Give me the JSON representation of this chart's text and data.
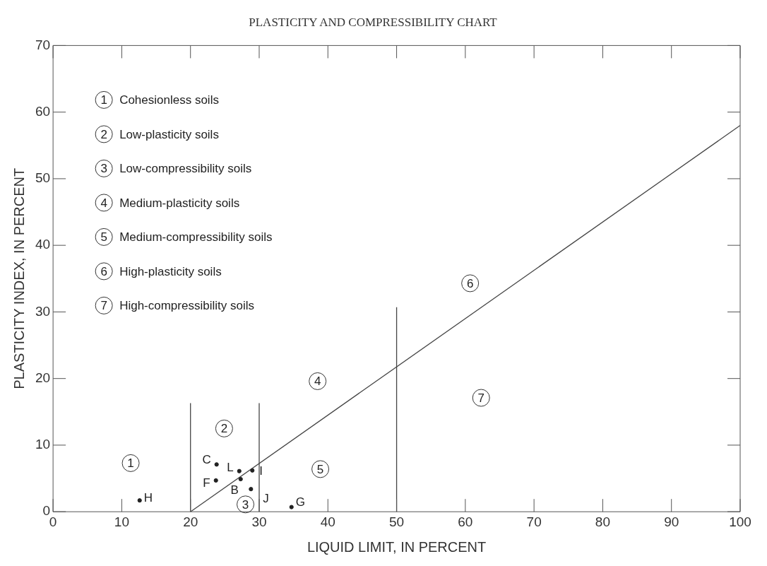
{
  "chart_data": {
    "type": "scatter",
    "title": "PLASTICITY AND COMPRESSIBILITY CHART",
    "xlabel": "LIQUID LIMIT, IN PERCENT",
    "ylabel": "PLASTICITY INDEX, IN PERCENT",
    "xlim": [
      0,
      100
    ],
    "ylim": [
      0,
      70
    ],
    "xticks": [
      0,
      10,
      20,
      30,
      40,
      50,
      60,
      70,
      80,
      90,
      100
    ],
    "yticks": [
      0,
      10,
      20,
      30,
      40,
      50,
      60,
      70
    ],
    "grid": false,
    "legend": false,
    "series": [
      {
        "marker": "circle",
        "color": "#222222",
        "x": [
          12.6,
          23.8,
          23.7,
          27.1,
          27.3,
          29.0,
          28.8,
          34.7
        ],
        "values": [
          1.7,
          7.1,
          4.7,
          6.1,
          4.9,
          6.2,
          3.4,
          0.7
        ],
        "value_labels": [
          "H",
          "C",
          "F",
          "L",
          "B",
          "I",
          "J",
          "G"
        ]
      },
      {
        "type": "line",
        "color": "#444444",
        "x": [
          20,
          100
        ],
        "values": [
          0,
          58
        ]
      },
      {
        "type": "line",
        "color": "#444444",
        "x": [
          20,
          20
        ],
        "values": [
          0,
          16.3
        ]
      },
      {
        "type": "line",
        "color": "#444444",
        "x": [
          30,
          30
        ],
        "values": [
          0,
          16.3
        ]
      },
      {
        "type": "line",
        "color": "#444444",
        "x": [
          50,
          50
        ],
        "values": [
          0,
          30.7
        ]
      }
    ],
    "annotations": [
      "1 Cohesionless soils",
      "2 Low-plasticity soils",
      "3 Low-compressibility soils",
      "4 Medium-plasticity soils",
      "5 Medium-compressibility soils",
      "6 High-plasticity soils",
      "7 High-compressibility soils",
      {
        "text": "1",
        "x": 11.3,
        "y": 7.3
      },
      {
        "text": "2",
        "x": 24.9,
        "y": 12.5
      },
      {
        "text": "3",
        "x": 28.0,
        "y": 1.1
      },
      {
        "text": "4",
        "x": 38.5,
        "y": 19.6
      },
      {
        "text": "5",
        "x": 38.9,
        "y": 6.4
      },
      {
        "text": "6",
        "x": 60.7,
        "y": 34.3
      },
      {
        "text": "7",
        "x": 62.3,
        "y": 17.1
      }
    ]
  }
}
